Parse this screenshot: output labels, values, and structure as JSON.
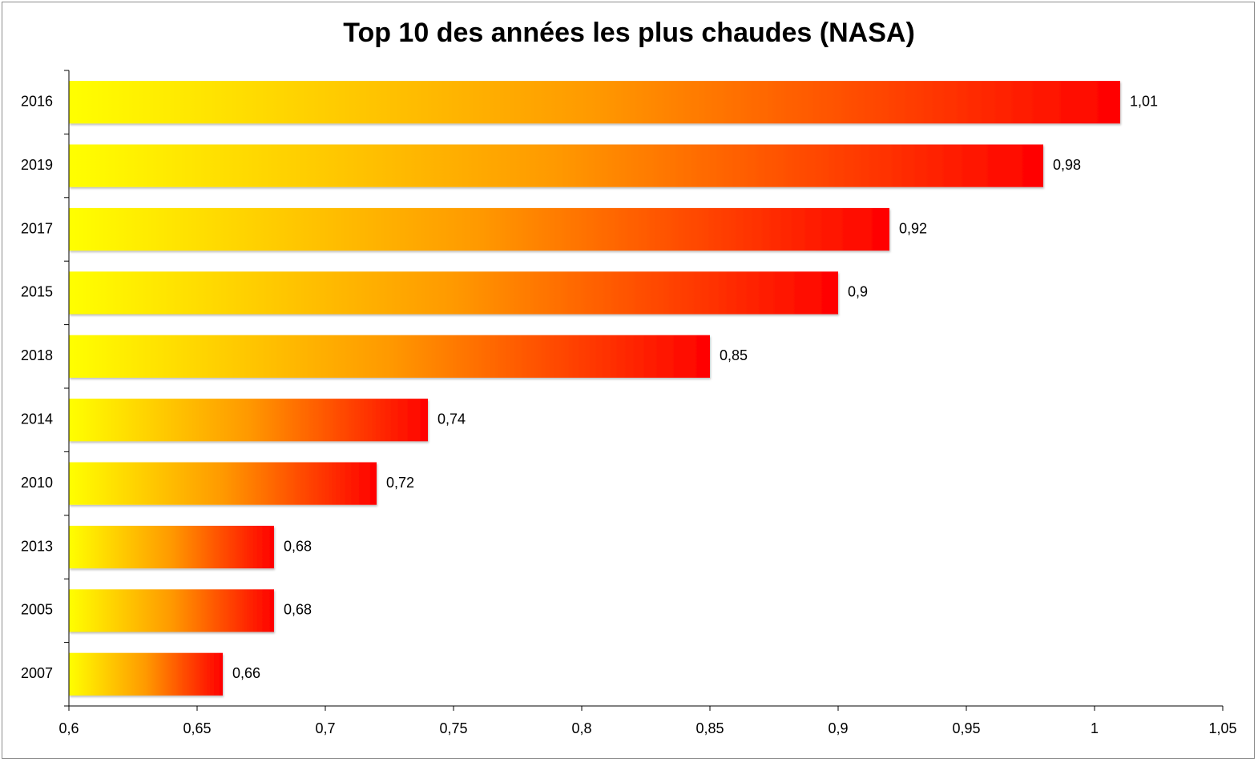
{
  "chart_data": {
    "type": "bar",
    "orientation": "horizontal",
    "title": "Top 10 des années les plus chaudes (NASA)",
    "categories": [
      "2016",
      "2019",
      "2017",
      "2015",
      "2018",
      "2014",
      "2010",
      "2013",
      "2005",
      "2007"
    ],
    "values": [
      1.01,
      0.98,
      0.92,
      0.9,
      0.85,
      0.74,
      0.72,
      0.68,
      0.68,
      0.66
    ],
    "value_labels": [
      "1,01",
      "0,98",
      "0,92",
      "0,9",
      "0,85",
      "0,74",
      "0,72",
      "0,68",
      "0,68",
      "0,66"
    ],
    "x_ticks": [
      0.6,
      0.65,
      0.7,
      0.75,
      0.8,
      0.85,
      0.9,
      0.95,
      1.0,
      1.05
    ],
    "x_tick_labels": [
      "0,6",
      "0,65",
      "0,7",
      "0,75",
      "0,8",
      "0,85",
      "0,9",
      "0,95",
      "1",
      "1,05"
    ],
    "xlim": [
      0.6,
      1.05
    ],
    "xlabel": "",
    "ylabel": "",
    "grid": false,
    "legend": "none",
    "colors": {
      "gradient_start": "#ffff00",
      "gradient_mid": "#ff9900",
      "gradient_end": "#ff0000",
      "axis": "#000000",
      "frame": "#8c8c8c"
    }
  }
}
